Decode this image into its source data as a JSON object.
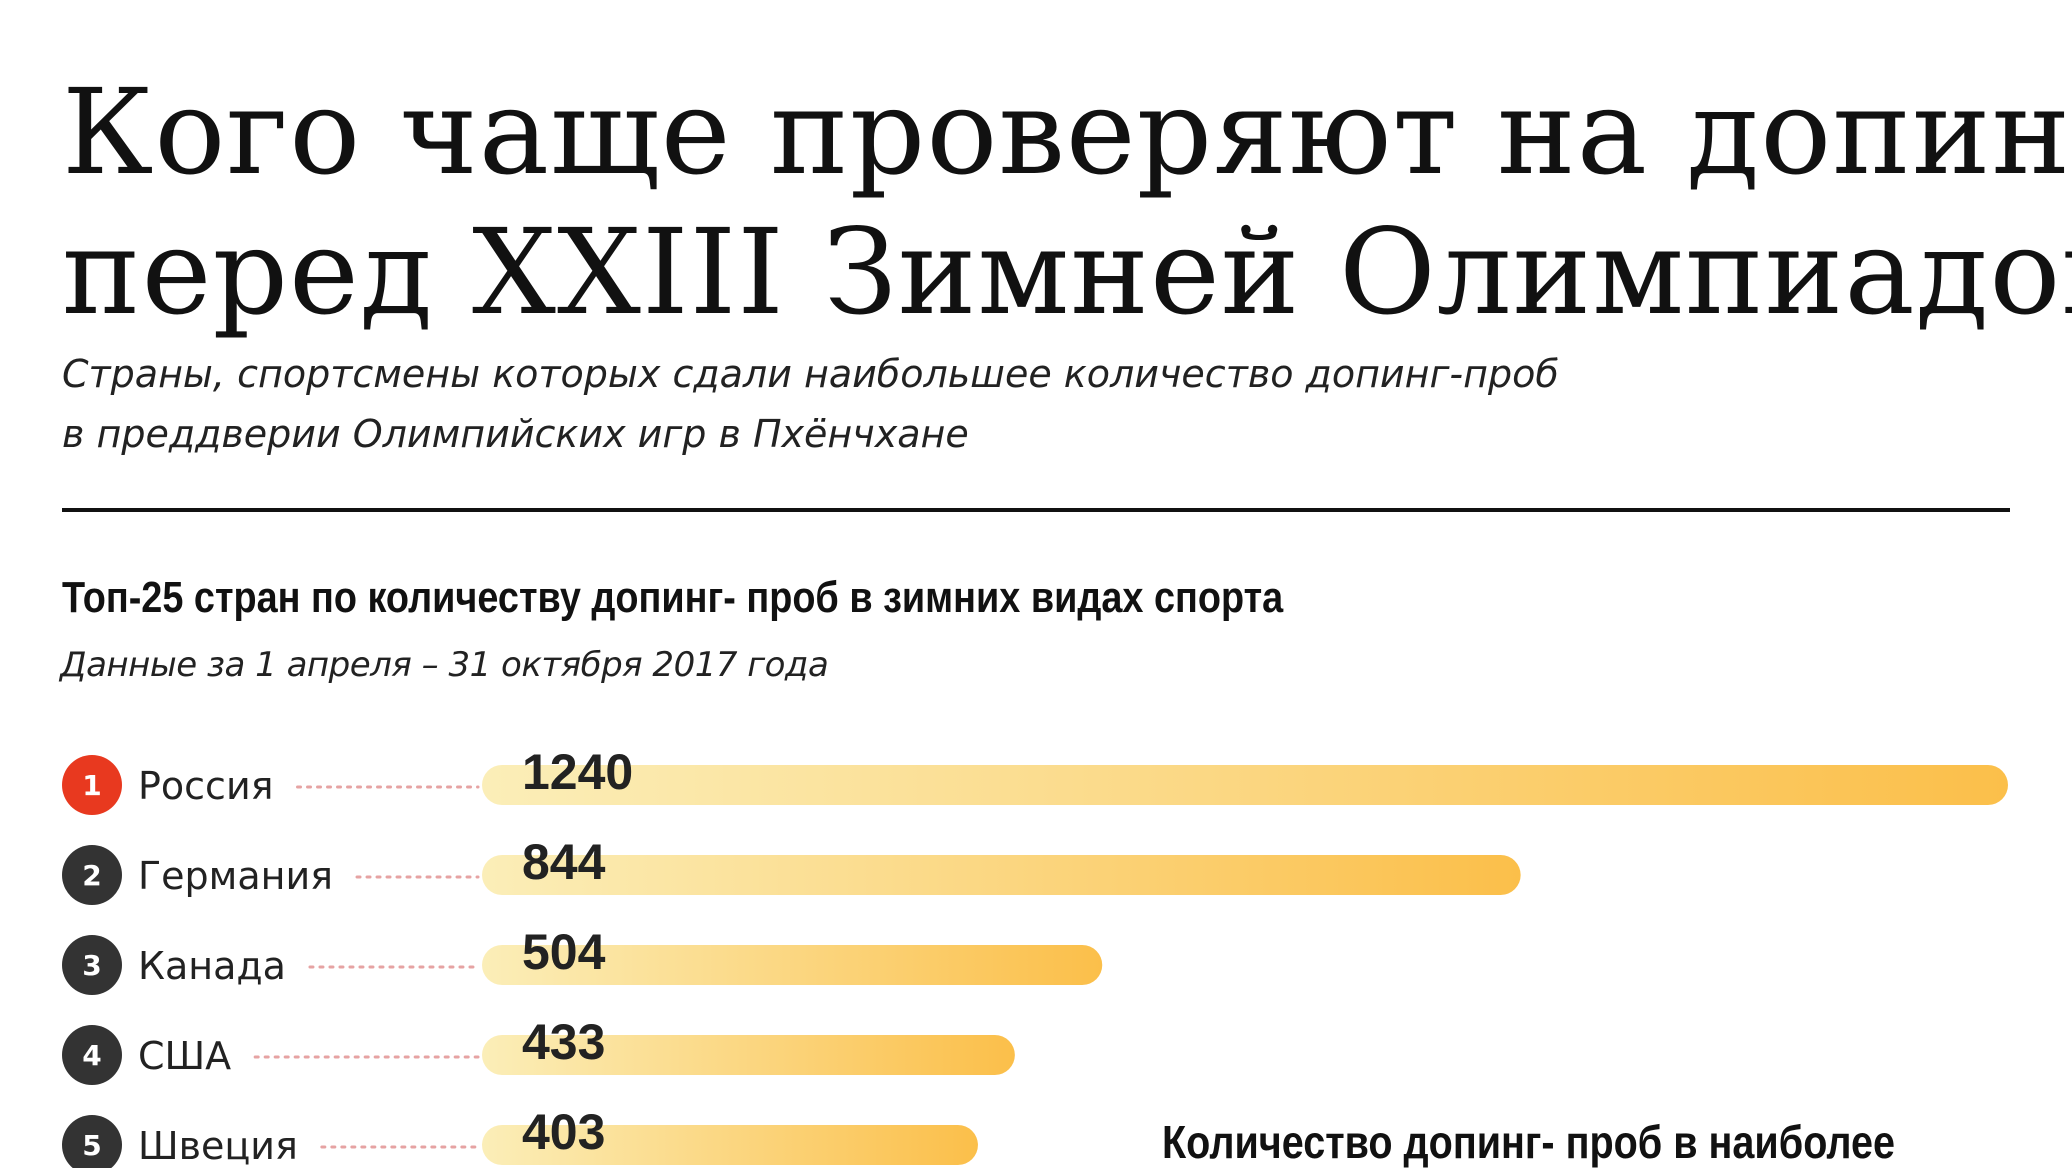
{
  "header": {
    "title_line1": "Кого чаще проверяют на допинг",
    "title_line2": "перед XXIII Зимней Олимпиадой",
    "subtitle_line1": "Страны, спортсмены которых сдали наибольшее количество допинг-проб",
    "subtitle_line2": "в преддверии Олимпийских игр в Пхёнчхане"
  },
  "second_chart": {
    "title_partial": "Количество допинг- проб в наиболее"
  },
  "colors": {
    "rank_first": "#e8391f",
    "rank_other": "#333333",
    "bar_start": "#fbeeb8",
    "bar_end": "#fbbf4a",
    "leader_dots": "#e6a3a3"
  },
  "chart_data": {
    "type": "bar",
    "title": "Топ-25 стран по количеству допинг- проб в зимних видах спорта",
    "subtitle": "Данные за 1 апреля – 31 октября 2017 года",
    "orientation": "horizontal",
    "categories": [
      "Россия",
      "Германия",
      "Канада",
      "США",
      "Швеция"
    ],
    "ranks": [
      "1",
      "2",
      "3",
      "4",
      "5"
    ],
    "values": [
      1240,
      844,
      504,
      433,
      403
    ],
    "value_labels": [
      "1240",
      "844",
      "504",
      "433",
      "403"
    ],
    "xlim": [
      0,
      1240
    ],
    "grid": false,
    "legend": "none"
  }
}
